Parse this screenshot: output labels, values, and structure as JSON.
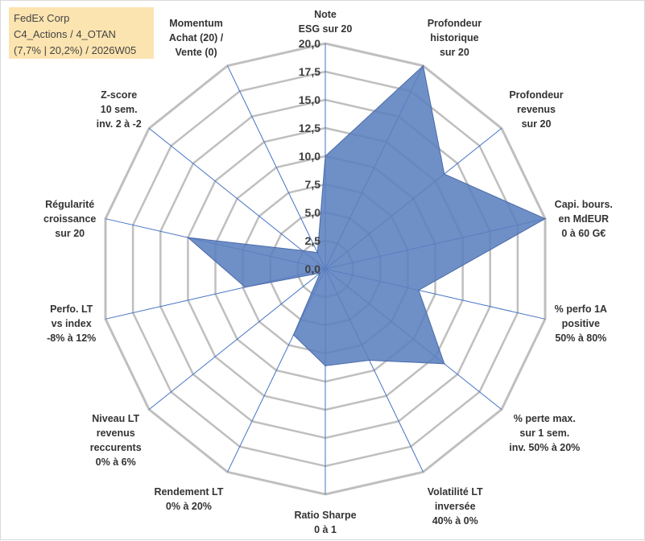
{
  "info_box": {
    "line1": "FedEx Corp",
    "line2": "C4_Actions / 4_OTAN",
    "line3": "(7,7% | 20,2%) / 2026W05"
  },
  "chart_data": {
    "type": "radar",
    "title": "",
    "rmin": 0,
    "rmax": 20,
    "ticks": [
      "0,0",
      "2,5",
      "5,0",
      "7,5",
      "10,0",
      "12,5",
      "15,0",
      "17,5",
      "20,0"
    ],
    "tick_values": [
      0,
      2.5,
      5,
      7.5,
      10,
      12.5,
      15,
      17.5,
      20
    ],
    "axes": [
      [
        "Note",
        "ESG sur 20"
      ],
      [
        "Profondeur",
        "historique",
        "sur 20"
      ],
      [
        "Profondeur",
        "revenus",
        "sur 20"
      ],
      [
        "Capi. bours.",
        "en MdEUR",
        "0 à 60 G€"
      ],
      [
        "% perfo 1A",
        "positive",
        "50% à 80%"
      ],
      [
        "% perte max.",
        "sur 1 sem.",
        "inv. 50% à 20%"
      ],
      [
        "Volatilité LT",
        "inversée",
        "40% à 0%"
      ],
      [
        "Ratio Sharpe",
        "0 à 1"
      ],
      [
        "Rendement LT",
        "0% à 20%"
      ],
      [
        "Niveau LT",
        "revenus",
        "reccurents",
        "0% à 6%"
      ],
      [
        "Perfo. LT",
        "vs index",
        "-8% à 12%"
      ],
      [
        "Régularité",
        "croissance",
        "sur 20"
      ],
      [
        "Z-score",
        "10 sem.",
        "inv. 2 à -2"
      ],
      [
        "Momentum",
        "Achat (20) /",
        "Vente (0)"
      ]
    ],
    "series": [
      {
        "name": "FedEx Corp",
        "values": [
          10,
          20,
          13.5,
          20,
          8.5,
          13.5,
          9,
          8.6,
          6.5,
          0.6,
          7.3,
          12.5,
          2.6,
          1.6
        ]
      }
    ],
    "colors": {
      "fill": "#5b7fbf",
      "stroke": "#4a6aa8",
      "grid": "#bfbfbf",
      "spoke": "#4472c4"
    }
  }
}
